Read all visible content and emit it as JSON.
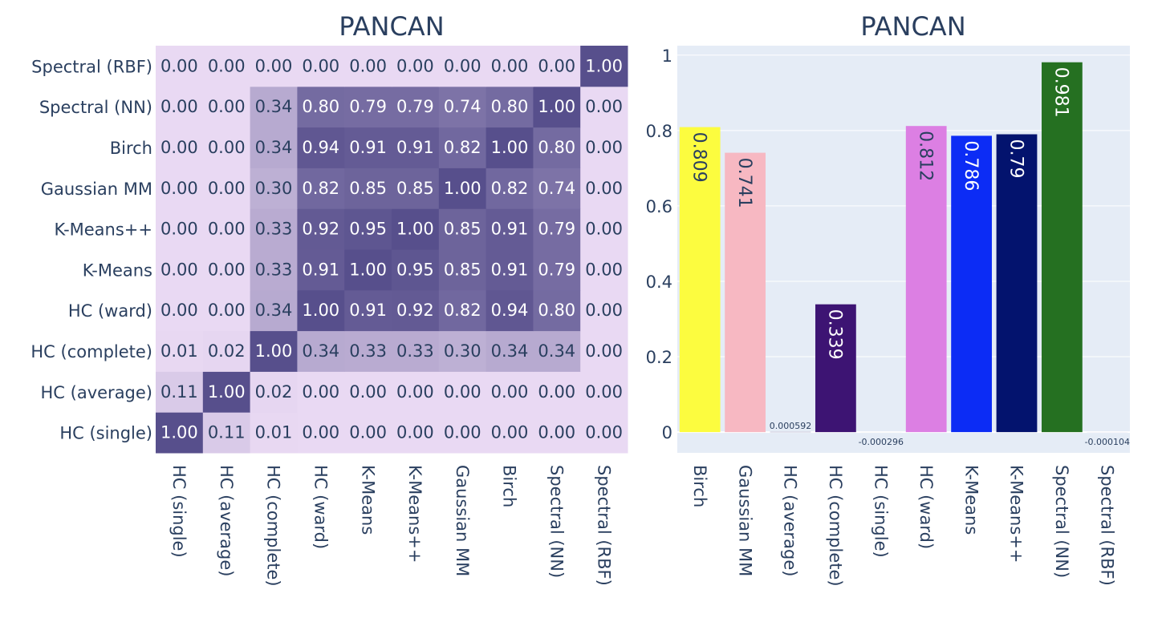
{
  "chart_data": [
    {
      "type": "heatmap",
      "title": "PANCAN",
      "x_categories": [
        "HC (single)",
        "HC (average)",
        "HC (complete)",
        "HC (ward)",
        "K-Means",
        "K-Means++",
        "Gaussian MM",
        "Birch",
        "Spectral (NN)",
        "Spectral (RBF)"
      ],
      "y_categories": [
        "HC (single)",
        "HC (average)",
        "HC (complete)",
        "HC (ward)",
        "K-Means",
        "K-Means++",
        "Gaussian MM",
        "Birch",
        "Spectral (NN)",
        "Spectral (RBF)"
      ],
      "values": [
        [
          1.0,
          0.11,
          0.01,
          0.0,
          0.0,
          0.0,
          0.0,
          0.0,
          0.0,
          0.0
        ],
        [
          0.11,
          1.0,
          0.02,
          0.0,
          0.0,
          0.0,
          0.0,
          0.0,
          0.0,
          0.0
        ],
        [
          0.01,
          0.02,
          1.0,
          0.34,
          0.33,
          0.33,
          0.3,
          0.34,
          0.34,
          0.0
        ],
        [
          0.0,
          0.0,
          0.34,
          1.0,
          0.91,
          0.92,
          0.82,
          0.94,
          0.8,
          0.0
        ],
        [
          0.0,
          0.0,
          0.33,
          0.91,
          1.0,
          0.95,
          0.85,
          0.91,
          0.79,
          0.0
        ],
        [
          0.0,
          0.0,
          0.33,
          0.92,
          0.95,
          1.0,
          0.85,
          0.91,
          0.79,
          0.0
        ],
        [
          0.0,
          0.0,
          0.3,
          0.82,
          0.85,
          0.85,
          1.0,
          0.82,
          0.74,
          0.0
        ],
        [
          0.0,
          0.0,
          0.34,
          0.94,
          0.91,
          0.91,
          0.82,
          1.0,
          0.8,
          0.0
        ],
        [
          0.0,
          0.0,
          0.34,
          0.8,
          0.79,
          0.79,
          0.74,
          0.8,
          1.0,
          0.0
        ],
        [
          0.0,
          0.0,
          0.0,
          0.0,
          0.0,
          0.0,
          0.0,
          0.0,
          0.0,
          1.0
        ]
      ],
      "colorscale": [
        "#e9d9f3",
        "#574f8c"
      ]
    },
    {
      "type": "bar",
      "title": "PANCAN",
      "categories": [
        "Birch",
        "Gaussian MM",
        "HC (average)",
        "HC (complete)",
        "HC (single)",
        "HC (ward)",
        "K-Means",
        "K-Means++",
        "Spectral (NN)",
        "Spectral (RBF)"
      ],
      "values": [
        0.809,
        0.741,
        0.000592,
        0.339,
        -0.000296,
        0.812,
        0.786,
        0.79,
        0.981,
        -0.000104
      ],
      "labels": [
        "0.809",
        "0.741",
        "0.000592",
        "0.339",
        "-0.000296",
        "0.812",
        "0.786",
        "0.79",
        "0.981",
        "-0.000104"
      ],
      "colors": [
        "#fcfc3f",
        "#f7b8c2",
        "#2c2c7a",
        "#3d1473",
        "#d9d9d9",
        "#dc7fe3",
        "#0c2cf5",
        "#03136e",
        "#257021",
        "#5a2b8f"
      ],
      "ylim": [
        -0.055,
        1.025
      ],
      "yticks": [
        0,
        0.2,
        0.4,
        0.6,
        0.8,
        1
      ],
      "ytick_labels": [
        "0",
        "0.2",
        "0.4",
        "0.6",
        "0.8",
        "1"
      ],
      "grid": true
    }
  ]
}
